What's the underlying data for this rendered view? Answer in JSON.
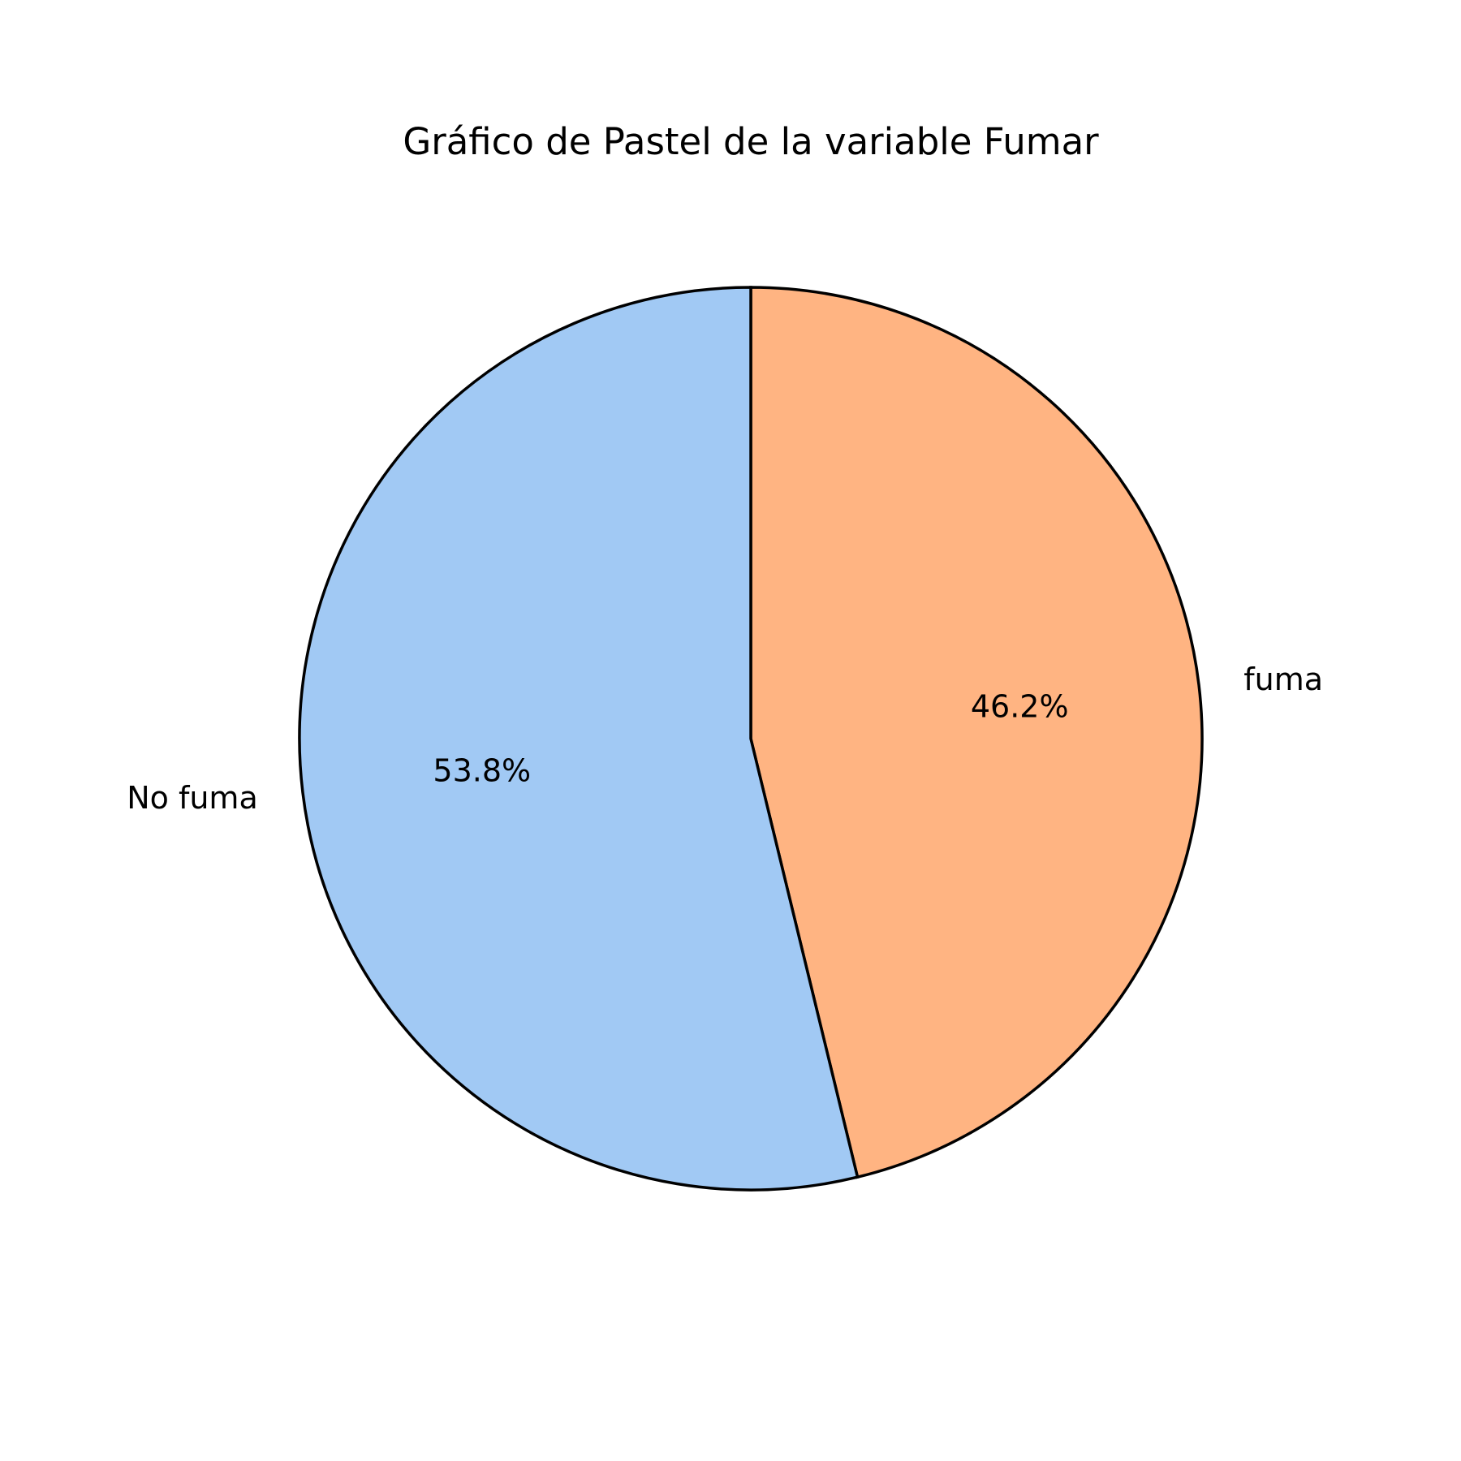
{
  "chart_data": {
    "type": "pie",
    "title": "Gráfico de Pastel de la variable Fumar",
    "start_angle_deg": 90,
    "direction": "clockwise",
    "slices": [
      {
        "label": "fuma",
        "value": 46.2,
        "pct_label": "46.2%",
        "color": "#ffb482"
      },
      {
        "label": "No fuma",
        "value": 53.8,
        "pct_label": "53.8%",
        "color": "#a1c9f4"
      }
    ],
    "edge_color": "#000000"
  }
}
